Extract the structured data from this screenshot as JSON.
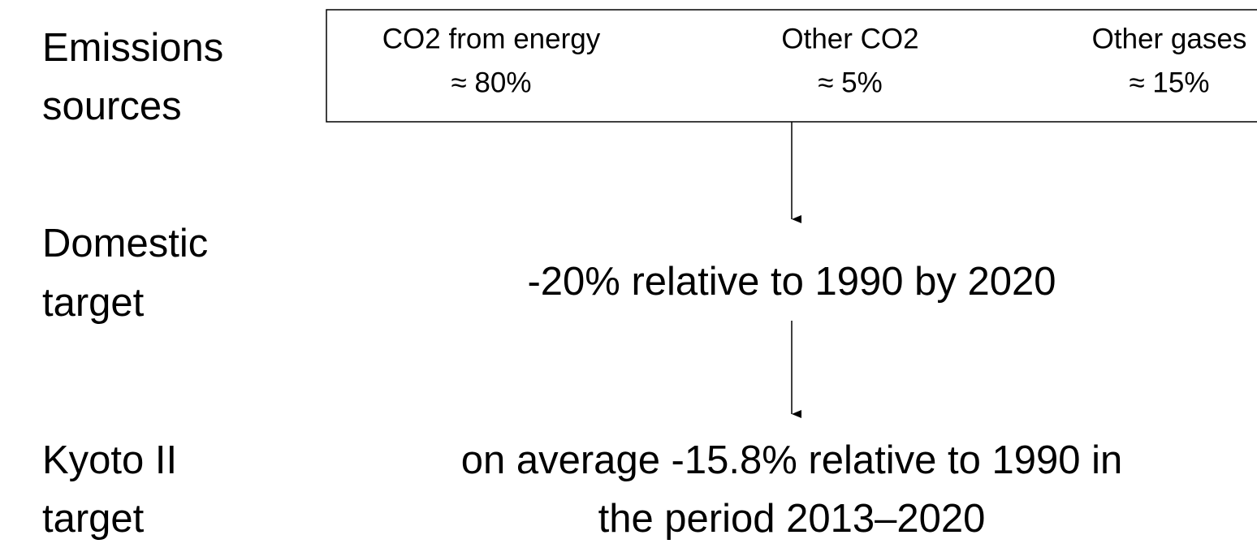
{
  "rows": [
    {
      "label": [
        "Emissions",
        "sources"
      ],
      "sources": [
        {
          "name": "CO2 from energy",
          "share": "≈  80%"
        },
        {
          "name": "Other CO2",
          "share": "≈  5%"
        },
        {
          "name": "Other gases",
          "share": "≈  15%"
        }
      ]
    },
    {
      "label": [
        "Domestic",
        "target"
      ],
      "text": [
        "-20% relative to 1990 by 2020"
      ]
    },
    {
      "label": [
        "Kyoto II",
        "target"
      ],
      "text": [
        "on average -15.8% relative to 1990 in",
        "the period 2013–2020"
      ]
    }
  ]
}
